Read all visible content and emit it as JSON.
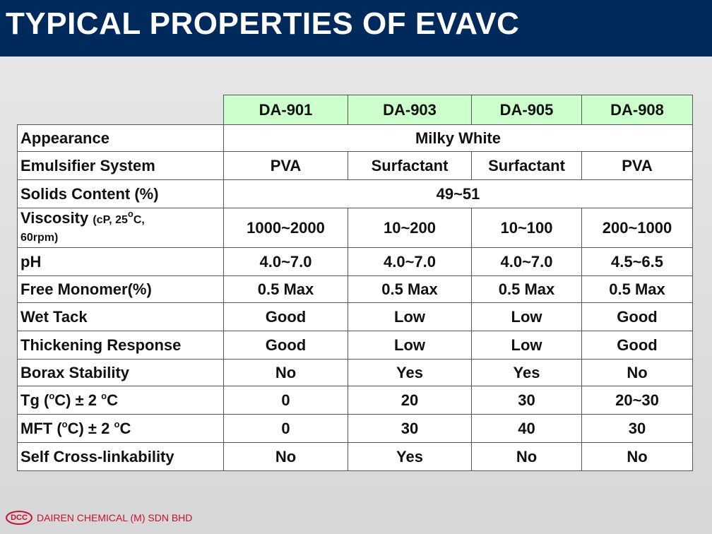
{
  "title": "TYPICAL PROPERTIES OF EVAVC",
  "grades": [
    "DA-901",
    "DA-903",
    "DA-905",
    "DA-908"
  ],
  "rows": {
    "appearance": {
      "label": "Appearance",
      "value": "Milky White"
    },
    "emulsifier": {
      "label": "Emulsifier System",
      "values": [
        "PVA",
        "Surfactant",
        "Surfactant",
        "PVA"
      ]
    },
    "solids": {
      "label": "Solids Content (%)",
      "value": "49~51"
    },
    "viscosity": {
      "label": "Viscosity",
      "label_note": "(cP, 25",
      "label_note_sup": "o",
      "label_note_end": "C,",
      "label_note_line2": "60rpm)",
      "values": [
        "1000~2000",
        "10~200",
        "10~100",
        "200~1000"
      ]
    },
    "ph": {
      "label": "pH",
      "values": [
        "4.0~7.0",
        "4.0~7.0",
        "4.0~7.0",
        "4.5~6.5"
      ]
    },
    "free_monomer": {
      "label": "Free Monomer(%)",
      "values": [
        "0.5 Max",
        "0.5 Max",
        "0.5 Max",
        "0.5 Max"
      ]
    },
    "wet_tack": {
      "label": "Wet Tack",
      "values": [
        "Good",
        "Low",
        "Low",
        "Good"
      ]
    },
    "thickening": {
      "label": "Thickening Response",
      "values": [
        "Good",
        "Low",
        "Low",
        "Good"
      ]
    },
    "borax": {
      "label": "Borax Stability",
      "values": [
        "No",
        "Yes",
        "Yes",
        "No"
      ]
    },
    "tg": {
      "label_a": "Tg (",
      "label_sup1": "o",
      "label_b": "C) ± 2 ",
      "label_sup2": "o",
      "label_c": "C",
      "values": [
        "0",
        "20",
        "30",
        "20~30"
      ]
    },
    "mft": {
      "label_a": "MFT (",
      "label_sup1": "o",
      "label_b": "C) ± 2 ",
      "label_sup2": "o",
      "label_c": "C",
      "values": [
        "0",
        "30",
        "40",
        "30"
      ]
    },
    "crosslink": {
      "label": "Self Cross-linkability",
      "values": [
        "No",
        "Yes",
        "No",
        "No"
      ]
    }
  },
  "footer": {
    "logo_text": "DCC",
    "company": "DAIREN CHEMICAL (M) SDN BHD"
  },
  "colors": {
    "header_bg": "#002a5c",
    "grade_header_bg": "#ccffcc",
    "brand_red": "#c8102e"
  }
}
